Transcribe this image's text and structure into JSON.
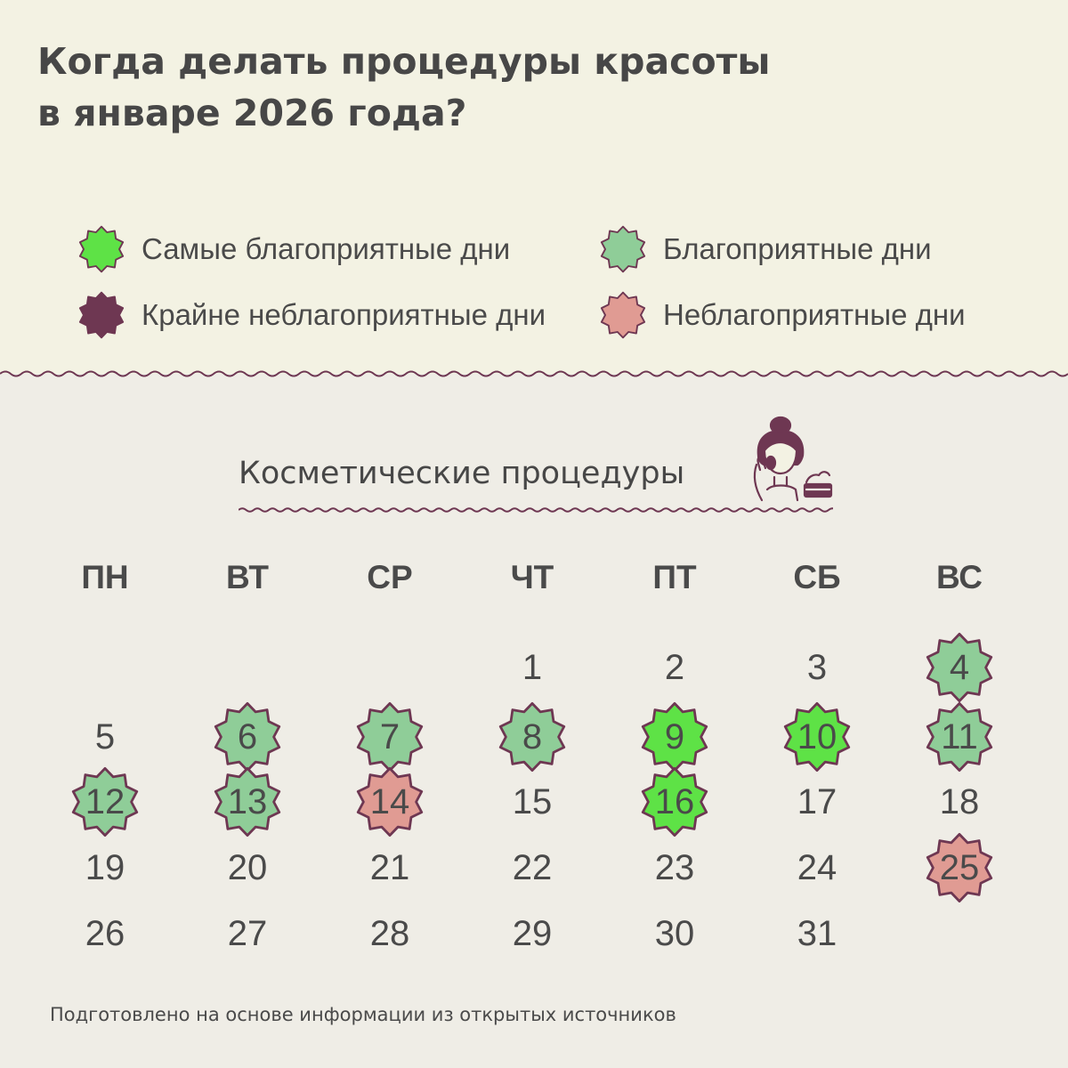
{
  "title": {
    "line1": "Когда делать процедуры красоты",
    "line2": "в январе 2026 года?"
  },
  "legend": [
    {
      "key": "best",
      "label": "Самые благоприятные дни",
      "color": "#5ee246"
    },
    {
      "key": "good",
      "label": "Благоприятные дни",
      "color": "#8fcd98"
    },
    {
      "key": "worst",
      "label": "Крайне неблагоприятные дни",
      "color": "#6e3752"
    },
    {
      "key": "bad",
      "label": "Неблагоприятные дни",
      "color": "#e09b93"
    }
  ],
  "section_title": "Косметические процедуры",
  "icons": {
    "illustration": "woman-skincare-icon",
    "badge": "scalloped-badge-icon"
  },
  "weekdays": [
    "ПН",
    "ВТ",
    "СР",
    "ЧТ",
    "ПТ",
    "СБ",
    "ВС"
  ],
  "month": {
    "first_weekday_index": 3,
    "days_count": 31,
    "marked_days": {
      "4": "good",
      "6": "good",
      "7": "good",
      "8": "good",
      "9": "best",
      "10": "best",
      "11": "good",
      "12": "good",
      "13": "good",
      "14": "bad",
      "16": "best",
      "25": "bad"
    }
  },
  "colors": {
    "badge_outline": "#6e3752",
    "header_bg": "#f3f2e3",
    "body_bg": "#efede6",
    "wave": "#6e3752"
  },
  "footer": "Подготовлено на основе информации из открытых источников"
}
